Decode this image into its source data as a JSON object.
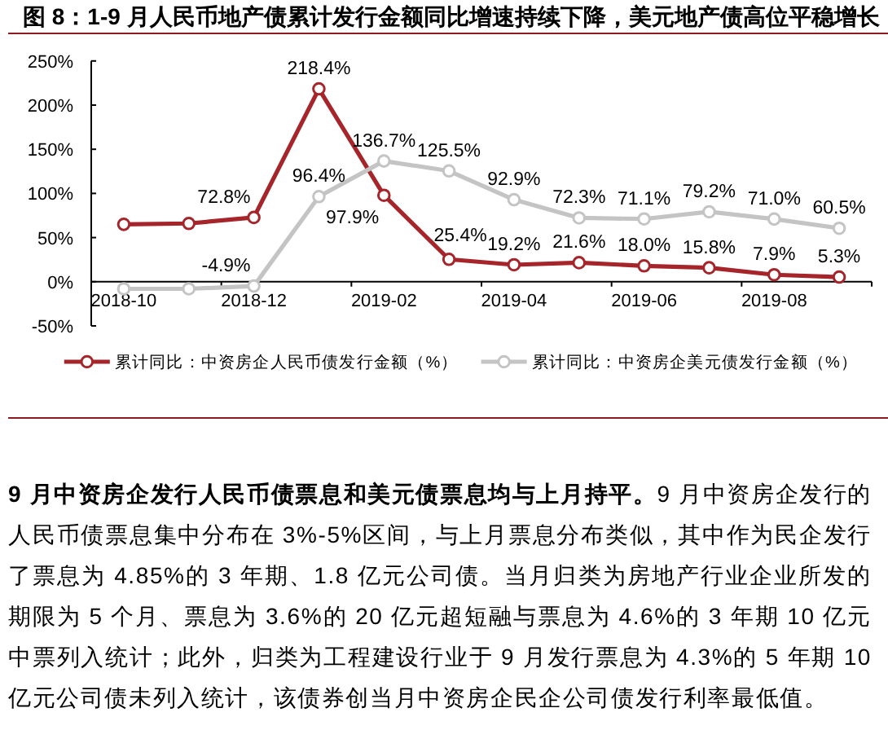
{
  "chart_data": {
    "type": "line",
    "title": "图 8：1-9 月人民币地产债累计发行金额同比增速持续下降，美元地产债高位平稳增长",
    "categories": [
      "2018-10",
      null,
      "2018-12",
      null,
      "2019-02",
      null,
      "2019-04",
      null,
      "2019-06",
      null,
      "2019-08",
      null
    ],
    "series": [
      {
        "name": "累计同比：中资房企人民币债发行金额（%）",
        "color": "#a5252a",
        "values": [
          65,
          66,
          72.8,
          218.4,
          97.9,
          25.4,
          19.2,
          21.6,
          18.0,
          15.8,
          7.9,
          5.3
        ],
        "value_labels": [
          null,
          null,
          "72.8%",
          "218.4%",
          "97.9%",
          "25.4%",
          "19.2%",
          "21.6%",
          "18.0%",
          "15.8%",
          "7.9%",
          "5.3%"
        ]
      },
      {
        "name": "累计同比：中资房企美元债发行金额（%）",
        "color": "#c4c4c4",
        "values": [
          -8,
          -8,
          -4.9,
          96.4,
          136.7,
          125.5,
          92.9,
          72.3,
          71.1,
          79.2,
          71.0,
          60.5
        ],
        "value_labels": [
          null,
          null,
          "-4.9%",
          "96.4%",
          "136.7%",
          "125.5%",
          "92.9%",
          "72.3%",
          "71.1%",
          "79.2%",
          "71.0%",
          "60.5%"
        ]
      }
    ],
    "ylim": [
      -50,
      250
    ],
    "yticks": [
      {
        "value": -50,
        "label": "-50%"
      },
      {
        "value": 0,
        "label": "0%"
      },
      {
        "value": 50,
        "label": "50%"
      },
      {
        "value": 100,
        "label": "100%"
      },
      {
        "value": 150,
        "label": "150%"
      },
      {
        "value": 200,
        "label": "200%"
      },
      {
        "value": 250,
        "label": "250%"
      }
    ],
    "legend": "bottom",
    "marker": "circle",
    "line_style": "solid",
    "annotations": [
      "**9 月中资房企发行人民币债票息和美元债票息均与上月持平。**9 月中资房企发行的人民币债票息集中分布在 3%-5%区间，与上月票息分布类似，其中作为民企发行了票息为 4.85%的 3 年期、1.8 亿元公司债。当月归类为房地产行业企业所发的期限为 5 个月、票息为 3.6%的 20 亿元超短融与票息为 4.6%的 3 年期 10 亿元中票列入统计；此外，归类为工程建设行业于 9 月发行票息为 4.3%的 5 年期 10 亿元公司债未列入统计，该债券创当月中资房企民企公司债发行利率最低值。"
    ]
  }
}
